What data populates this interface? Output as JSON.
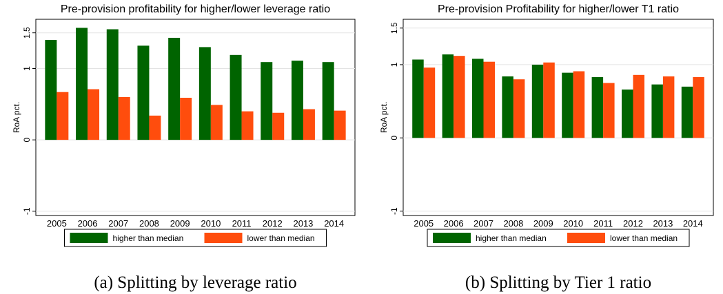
{
  "chart_data": [
    {
      "type": "bar",
      "title": "Pre-provision profitability for higher/lower leverage ratio",
      "y_label": "RoA pct.",
      "categories": [
        "2005",
        "2006",
        "2007",
        "2008",
        "2009",
        "2010",
        "2011",
        "2012",
        "2013",
        "2014"
      ],
      "series": [
        {
          "name": "higher than median",
          "color": "#006400",
          "values": [
            1.4,
            1.57,
            1.55,
            1.32,
            1.43,
            1.3,
            1.19,
            1.09,
            1.11,
            1.09
          ]
        },
        {
          "name": "lower than median",
          "color": "#ff4d0d",
          "values": [
            0.67,
            0.71,
            0.6,
            0.34,
            0.59,
            0.49,
            0.4,
            0.38,
            0.43,
            0.41
          ]
        }
      ],
      "ylim": [
        -1.06,
        1.69
      ],
      "yticks": [
        -1,
        0,
        1,
        1.5
      ],
      "grid": true,
      "caption": "(a) Splitting by leverage ratio"
    },
    {
      "type": "bar",
      "title": "Pre-provision Profitability for higher/lower T1 ratio",
      "y_label": "RoA pct.",
      "categories": [
        "2005",
        "2006",
        "2007",
        "2008",
        "2009",
        "2010",
        "2011",
        "2012",
        "2013",
        "2014"
      ],
      "series": [
        {
          "name": "higher than median",
          "color": "#006400",
          "values": [
            1.07,
            1.14,
            1.08,
            0.84,
            1.0,
            0.89,
            0.83,
            0.66,
            0.73,
            0.7
          ]
        },
        {
          "name": "lower than median",
          "color": "#ff4d0d",
          "values": [
            0.96,
            1.12,
            1.04,
            0.8,
            1.03,
            0.91,
            0.75,
            0.86,
            0.84,
            0.83
          ]
        }
      ],
      "ylim": [
        -1.06,
        1.62
      ],
      "yticks": [
        -1,
        0,
        1,
        1.5
      ],
      "grid": true,
      "caption": "(b) Splitting by Tier 1 ratio"
    }
  ]
}
